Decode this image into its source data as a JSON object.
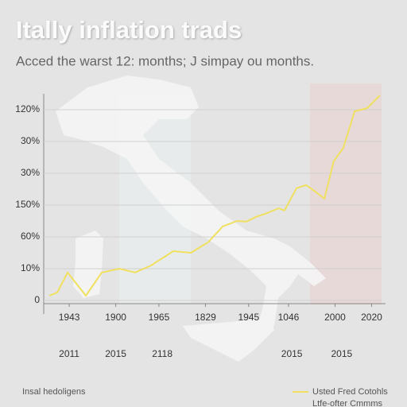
{
  "chart_data": {
    "type": "line",
    "title": "Itally inflation trads",
    "subtitle": "Acced the warst 12: months; J simpay ou months.",
    "footnote": "Insal hedoligens",
    "legend_extra": "Ltfe-ofter Cmmms",
    "legend": "bottom-right",
    "grid": true,
    "xlim": [
      0,
      100
    ],
    "ylim": [
      0,
      6.5
    ],
    "yticks": [
      {
        "value": 0,
        "label": "0"
      },
      {
        "value": 1,
        "label": "10%"
      },
      {
        "value": 2,
        "label": "60%"
      },
      {
        "value": 3,
        "label": "150%"
      },
      {
        "value": 4,
        "label": "30%"
      },
      {
        "value": 5,
        "label": "30%"
      },
      {
        "value": 6,
        "label": "120%"
      }
    ],
    "xticks": [
      {
        "value": 6,
        "label": "1943"
      },
      {
        "value": 20,
        "label": "1900"
      },
      {
        "value": 33,
        "label": "1965"
      },
      {
        "value": 47,
        "label": "1829"
      },
      {
        "value": 60,
        "label": "1945"
      },
      {
        "value": 72,
        "label": "1046"
      },
      {
        "value": 86,
        "label": "2000"
      },
      {
        "value": 97,
        "label": "2020"
      }
    ],
    "x2ticks": [
      {
        "value": 6,
        "label": "2011"
      },
      {
        "value": 20,
        "label": "2015"
      },
      {
        "value": 34,
        "label": "2118"
      },
      {
        "value": 73,
        "label": "2015"
      },
      {
        "value": 88,
        "label": "2015"
      }
    ],
    "x": [
      0,
      2.4,
      5.5,
      11,
      15.8,
      21.1,
      25.8,
      30.6,
      37.3,
      42.6,
      47.8,
      52.2,
      56.5,
      59.3,
      62.2,
      65.6,
      69,
      70.8,
      74.4,
      77.3,
      80.4,
      82.8,
      85.6,
      88.5,
      91.9,
      95.7,
      99.5
    ],
    "series": [
      {
        "name": "Usted Fred Cotohls",
        "color": "#f0e060",
        "values": [
          0.15,
          0.25,
          0.88,
          0.15,
          0.88,
          1.0,
          0.88,
          1.1,
          1.55,
          1.5,
          1.83,
          2.33,
          2.5,
          2.48,
          2.63,
          2.75,
          2.9,
          2.83,
          3.53,
          3.63,
          3.4,
          3.2,
          4.38,
          4.8,
          5.95,
          6.05,
          6.45
        ]
      }
    ]
  }
}
